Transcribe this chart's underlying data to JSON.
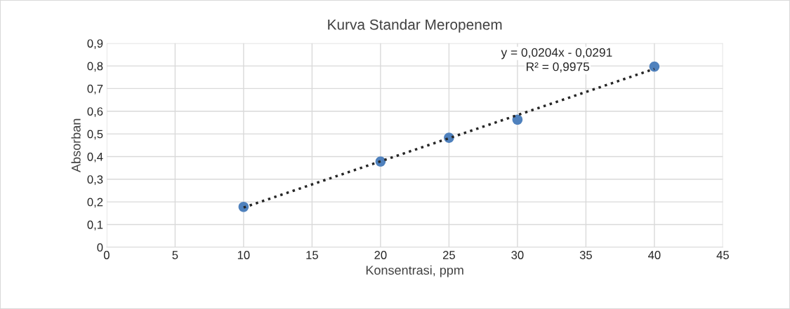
{
  "chart_data": {
    "type": "scatter",
    "title": "Kurva Standar Meropenem",
    "xlabel": "Konsentrasi, ppm",
    "ylabel": "Absorban",
    "series": [
      {
        "x": [
          10,
          20,
          25,
          30,
          40
        ],
        "values": [
          0.178,
          0.378,
          0.483,
          0.563,
          0.797
        ],
        "color": "#4f81bd",
        "marker": "circle"
      },
      {
        "type": "line",
        "x": [
          10,
          40
        ],
        "values": [
          0.175,
          0.787
        ],
        "color": "#262626",
        "line_style": "dotted",
        "marker": "none"
      }
    ],
    "annotations": [
      "y = 0,0204x - 0,0291",
      "R² = 0,9975"
    ],
    "xlim": [
      0,
      45
    ],
    "xticks": [
      0,
      5,
      10,
      15,
      20,
      25,
      30,
      35,
      40,
      45
    ],
    "ylim": [
      0,
      0.9
    ],
    "yticks": [
      0,
      {
        "value": 0.1,
        "label": "0,1"
      },
      {
        "value": 0.2,
        "label": "0,2"
      },
      {
        "value": 0.3,
        "label": "0,3"
      },
      {
        "value": 0.4,
        "label": "0,4"
      },
      {
        "value": 0.5,
        "label": "0,5"
      },
      {
        "value": 0.6,
        "label": "0,6"
      },
      {
        "value": 0.7,
        "label": "0,7"
      },
      {
        "value": 0.8,
        "label": "0,8"
      },
      {
        "value": 0.9,
        "label": "0,9"
      }
    ],
    "grid": true,
    "legend": false
  }
}
